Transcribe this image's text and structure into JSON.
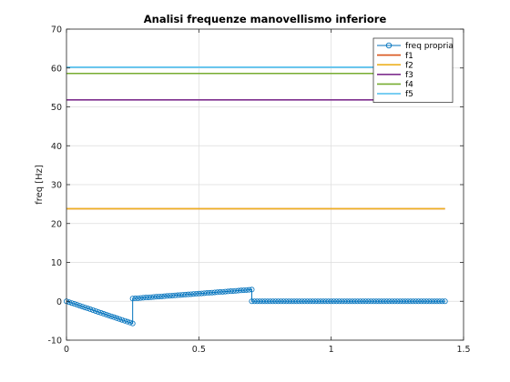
{
  "chart_data": {
    "type": "line",
    "title": "Analisi frequenze manovellismo inferiore",
    "xlabel": "",
    "ylabel": "freq [Hz]",
    "xlim": [
      0,
      1.5
    ],
    "ylim": [
      -10,
      70
    ],
    "x_ticks": [
      0,
      0.5,
      1,
      1.5
    ],
    "x_tick_labels": [
      "0",
      "0.5",
      "1",
      "1.5"
    ],
    "y_ticks": [
      -10,
      0,
      10,
      20,
      30,
      40,
      50,
      60,
      70
    ],
    "y_tick_labels": [
      "-10",
      "0",
      "10",
      "20",
      "30",
      "40",
      "50",
      "60",
      "70"
    ],
    "grid": true,
    "legend_position": "top-right",
    "series": [
      {
        "name": "freq propria",
        "color": "#0072BD",
        "marker": "circle",
        "segments": [
          {
            "x_start": 0.0,
            "x_end": 0.25,
            "y_start": 0.0,
            "y_end": -5.7,
            "step": 0.01
          },
          {
            "x_start": 0.25,
            "x_end": 0.7,
            "y_start": 0.7,
            "y_end": 3.0,
            "step": 0.01
          },
          {
            "x_start": 0.7,
            "x_end": 1.43,
            "y_start": 0.0,
            "y_end": 0.0,
            "step": 0.01
          }
        ]
      },
      {
        "name": "f1",
        "color": "#D95319",
        "x": [
          0,
          1.43
        ],
        "y": [
          23.8,
          23.8
        ]
      },
      {
        "name": "f2",
        "color": "#EDB120",
        "x": [
          0,
          1.43
        ],
        "y": [
          23.8,
          23.8
        ]
      },
      {
        "name": "f3",
        "color": "#7E2F8E",
        "x": [
          0,
          1.43
        ],
        "y": [
          51.8,
          51.8
        ]
      },
      {
        "name": "f4",
        "color": "#77AC30",
        "x": [
          0,
          1.43
        ],
        "y": [
          58.6,
          58.6
        ]
      },
      {
        "name": "f5",
        "color": "#4DBEEE",
        "x": [
          0,
          1.43
        ],
        "y": [
          60.2,
          60.2
        ]
      }
    ]
  }
}
